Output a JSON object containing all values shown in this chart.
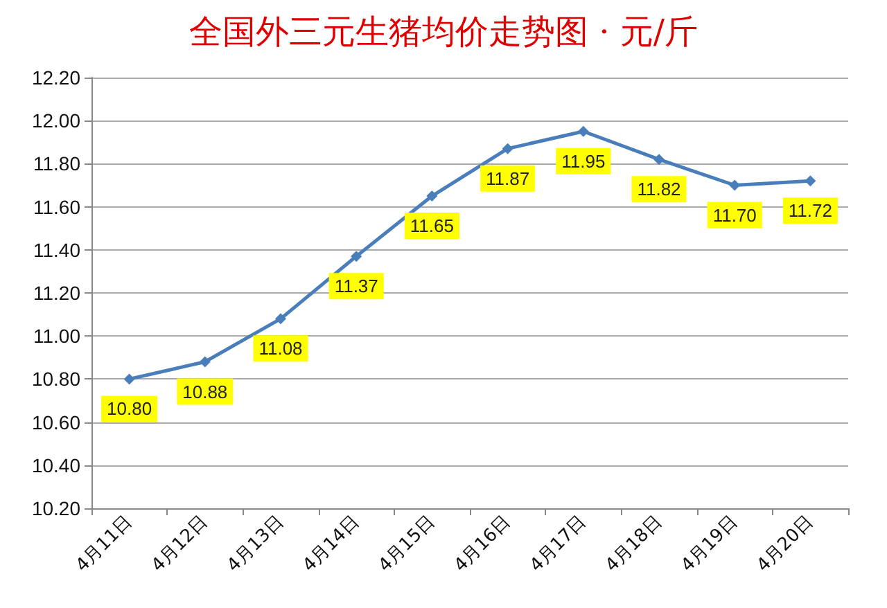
{
  "chart_data": {
    "type": "line",
    "title": "全国外三元生猪均价走势图 · 元/斤",
    "categories": [
      "4月11日",
      "4月12日",
      "4月13日",
      "4月14日",
      "4月15日",
      "4月16日",
      "4月17日",
      "4月18日",
      "4月19日",
      "4月20日"
    ],
    "series": [
      {
        "color": "#4a7ebb",
        "values": [
          10.8,
          10.88,
          11.08,
          11.37,
          11.65,
          11.87,
          11.95,
          11.82,
          11.7,
          11.72
        ],
        "value_labels": [
          "10.80",
          "10.88",
          "11.08",
          "11.37",
          "11.65",
          "11.87",
          "11.95",
          "11.82",
          "11.70",
          "11.72"
        ]
      }
    ],
    "ylim": [
      10.2,
      12.2
    ],
    "yticks": [
      {
        "value": 10.2,
        "label": "10.20"
      },
      {
        "value": 10.4,
        "label": "10.40"
      },
      {
        "value": 10.6,
        "label": "10.60"
      },
      {
        "value": 10.8,
        "label": "10.80"
      },
      {
        "value": 11,
        "label": "11.00"
      },
      {
        "value": 11.2,
        "label": "11.20"
      },
      {
        "value": 11.4,
        "label": "11.40"
      },
      {
        "value": 11.6,
        "label": "11.60"
      },
      {
        "value": 11.8,
        "label": "11.80"
      },
      {
        "value": 12,
        "label": "12.00"
      },
      {
        "value": 12.2,
        "label": "12.20"
      }
    ],
    "grid": "y",
    "marker": "diamond",
    "line_style": "solid"
  }
}
